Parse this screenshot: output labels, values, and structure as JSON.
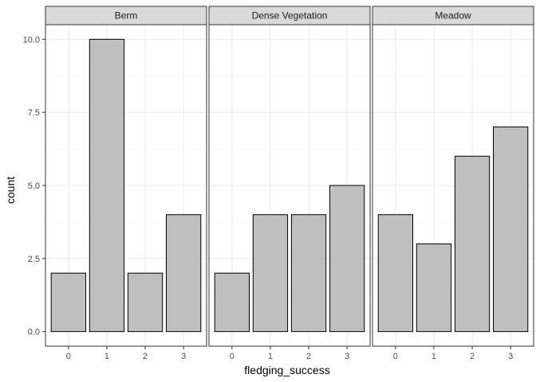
{
  "chart_data": {
    "type": "bar",
    "xlabel": "fledging_success",
    "ylabel": "count",
    "categories": [
      "0",
      "1",
      "2",
      "3"
    ],
    "ylim": [
      -0.5,
      10.5
    ],
    "y_ticks": [
      0,
      2.5,
      5,
      7.5,
      10
    ],
    "y_tick_labels": [
      "0.0",
      "2.5",
      "5.0",
      "7.5",
      "10.0"
    ],
    "grid": true,
    "panels": [
      {
        "name": "Berm",
        "values": [
          2,
          10,
          2,
          4
        ]
      },
      {
        "name": "Dense Vegetation",
        "values": [
          2,
          4,
          4,
          5
        ]
      },
      {
        "name": "Meadow",
        "values": [
          4,
          3,
          6,
          7
        ]
      }
    ],
    "colors": {
      "bar_fill": "#bfbfbf",
      "bar_stroke": "#000000",
      "strip_fill": "#d9d9d9",
      "panel_border": "#333333",
      "grid_major": "#ebebeb",
      "grid_minor": "#f5f5f5",
      "tick_text": "#4d4d4d"
    }
  }
}
